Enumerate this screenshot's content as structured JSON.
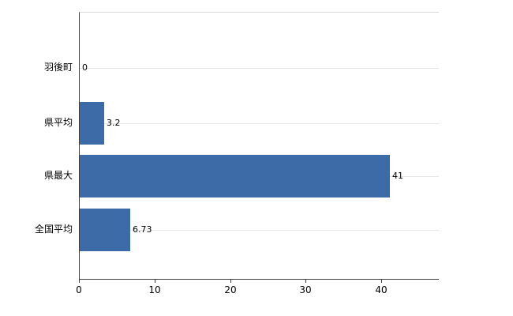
{
  "chart_data": {
    "type": "bar",
    "orientation": "horizontal",
    "title": "",
    "xlabel": "",
    "ylabel": "",
    "categories": [
      "羽後町",
      "県平均",
      "県最大",
      "全国平均"
    ],
    "values": [
      0,
      3.2,
      41,
      6.73
    ],
    "value_labels": [
      "0",
      "3.2",
      "41",
      "6.73"
    ],
    "x_ticks": [
      0,
      10,
      20,
      30,
      40
    ],
    "x_tick_labels": [
      "0",
      "10",
      "20",
      "30",
      "40"
    ],
    "xlim": [
      0,
      47.5
    ],
    "grid": true,
    "legend": false,
    "colors": {
      "bar": "#3c6ba8",
      "gridline": "#e6e6e6",
      "axis": "#404040",
      "plot_top_border": "#d9d9d9",
      "text": "#000000",
      "background": "#ffffff"
    }
  }
}
